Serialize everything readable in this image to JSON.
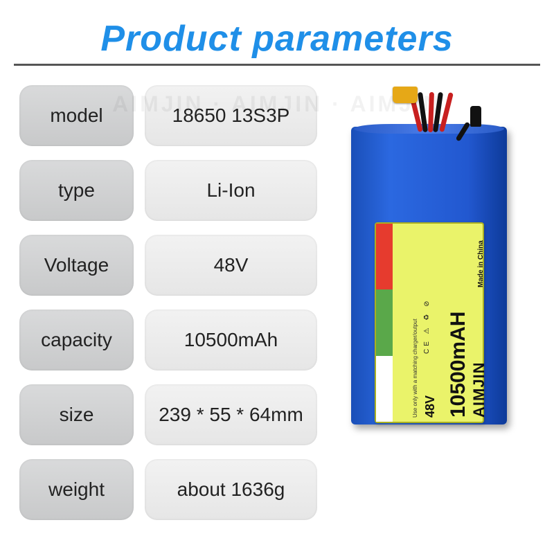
{
  "title": {
    "text": "Product parameters",
    "color": "#1f8fe8"
  },
  "specs": [
    {
      "label": "model",
      "value": "18650 13S3P"
    },
    {
      "label": "type",
      "value": "Li-Ion"
    },
    {
      "label": "Voltage",
      "value": "48V"
    },
    {
      "label": "capacity",
      "value": "10500mAh"
    },
    {
      "label": "size",
      "value": "239 * 55 * 64mm"
    },
    {
      "label": "weight",
      "value": "about 1636g"
    }
  ],
  "battery_label": {
    "brand": "AIMJIN",
    "capacity": "10500mAH",
    "voltage": "48V",
    "made": "Made in China",
    "fineprint": "Use only with a matching charger/output",
    "cert_icons": "CE ⚠ ♻ ⊘"
  },
  "watermark": "AIMJIN · AIMJIN · AIMJIN",
  "colors": {
    "battery_body": "#2258d0",
    "sticker_bg": "#eaf36a",
    "stripe_red": "#e63b2e",
    "stripe_green": "#5aa84a",
    "xt60": "#e6a817"
  }
}
